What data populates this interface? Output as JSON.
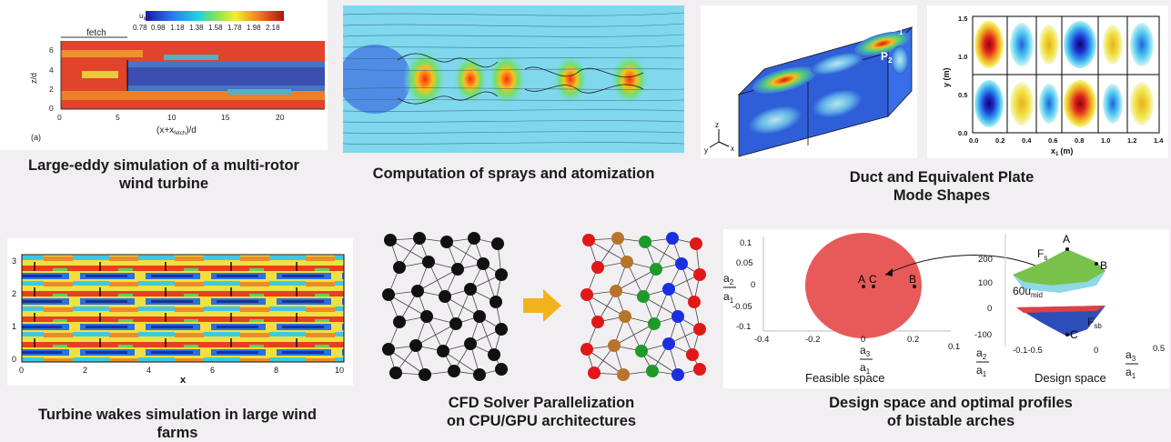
{
  "panels": [
    {
      "caption": "Large-eddy simulation of a multi-rotor wind turbine",
      "colorbar_label": "u",
      "colorbar_sub": "inst",
      "colorbar_ticks": [
        "0.78",
        "0.98",
        "1.18",
        "1.38",
        "1.58",
        "1.78",
        "1.98",
        "2.18"
      ],
      "fetch_label": "fetch",
      "ylabel": "z/d",
      "yticks": [
        "0",
        "2",
        "4",
        "6"
      ],
      "xticks": [
        "0",
        "5",
        "10",
        "15",
        "20"
      ],
      "xlabel_pre": "(x+x",
      "xlabel_sub": "fetch",
      "xlabel_post": ")/d",
      "panel_label": "(a)"
    },
    {
      "caption": "Computation of  sprays and atomization"
    },
    {
      "caption_line1": "Duct and Equivalent Plate",
      "caption_line2": "Mode Shapes",
      "p1": "P",
      "p1_sub": "1",
      "p2": "P",
      "p2_sub": "2",
      "axes": [
        "z",
        "y",
        "x"
      ],
      "plot_ylabel": "y (m)",
      "plot_xlabel": "x",
      "plot_xlabel_sub": "1",
      "plot_xlabel_unit": "(m)",
      "plot_yticks": [
        "0.0",
        "0.5",
        "1.0",
        "1.5"
      ],
      "plot_xticks": [
        "0.0",
        "0.2",
        "0.4",
        "0.6",
        "0.8",
        "1.0",
        "1.2",
        "1.4"
      ]
    },
    {
      "caption_line1": "Turbine wakes simulation in large wind",
      "caption_line2": "farms",
      "yticks": [
        "0",
        "1",
        "2",
        "3"
      ],
      "xticks": [
        "0",
        "2",
        "4",
        "6",
        "8",
        "10"
      ],
      "xlabel": "x"
    },
    {
      "caption_line1": "CFD Solver Parallelization",
      "caption_line2": "on CPU/GPU architectures"
    },
    {
      "caption_line1": "Design space and optimal profiles",
      "caption_line2": "of bistable arches",
      "feasible_label": "Feasible space",
      "design_label": "Design space",
      "left_yticks": [
        "0.1",
        "0.05",
        "0",
        "-0.05",
        "-0.1"
      ],
      "left_xticks": [
        "-0.4",
        "-0.2",
        "0",
        "0.2"
      ],
      "points_left": [
        "A",
        "C",
        "B"
      ],
      "right_zticks": [
        "200",
        "100",
        "0",
        "-100"
      ],
      "right_xticks": [
        "0.1",
        "-0.1-0.5",
        "0",
        "0.5"
      ],
      "fs": "F",
      "fs_sub": "s",
      "fsb": "F",
      "fsb_sub": "sb",
      "mid_label": "60u",
      "mid_sub": "mid",
      "points_right": [
        "A",
        "B",
        "C"
      ],
      "ratio_top_a2": "a",
      "ratio_top_a2_sub": "2",
      "ratio_bot_a1": "a",
      "ratio_bot_a1_sub": "1",
      "ratio_a3": "a",
      "ratio_a3_sub": "3"
    }
  ]
}
